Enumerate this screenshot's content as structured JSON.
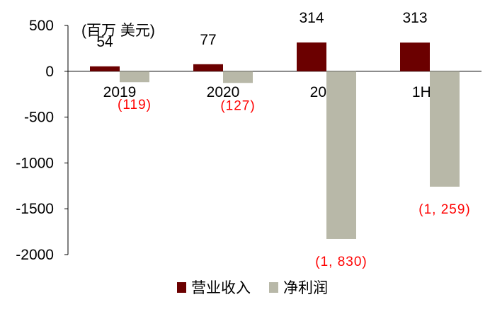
{
  "chart_data": {
    "type": "bar",
    "unit_label": "(百万 美元)",
    "categories": [
      "2019",
      "2020",
      "2021",
      "1H22"
    ],
    "series": [
      {
        "name": "营业收入",
        "color": "#6b0000",
        "values": [
          54,
          77,
          314,
          313
        ],
        "labels": [
          "54",
          "77",
          "314",
          "313"
        ]
      },
      {
        "name": "净利润",
        "color": "#b8b8a8",
        "values": [
          -119,
          -127,
          -1830,
          -1259
        ],
        "labels": [
          "(119)",
          "(127)",
          "(1, 830)",
          "(1, 259)"
        ]
      }
    ],
    "ylim": [
      -2000,
      500
    ],
    "yticks": [
      "500",
      "0",
      "-500",
      "-1000",
      "-1500",
      "-2000"
    ],
    "negative_label_color": "#ff0000",
    "legend_position": "bottom-center",
    "grid": false
  }
}
